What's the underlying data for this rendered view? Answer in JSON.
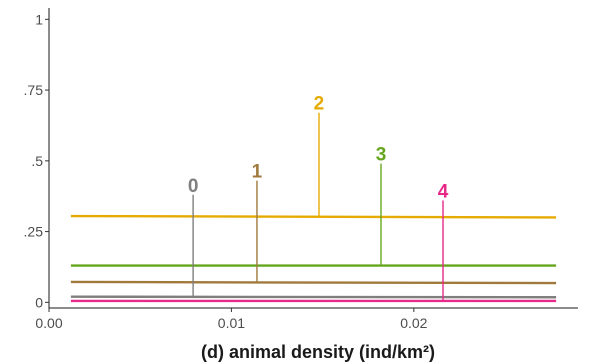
{
  "chart_data": {
    "type": "line",
    "title": "",
    "xlabel": "(d)  animal density (ind/km²)",
    "ylabel": "",
    "xlim": [
      0.0,
      0.029
    ],
    "ylim": [
      -0.02,
      1.04
    ],
    "x_ticks": [
      {
        "value": 0.0,
        "label": "0.00"
      },
      {
        "value": 0.01,
        "label": "0.01"
      },
      {
        "value": 0.02,
        "label": "0.02"
      }
    ],
    "y_ticks": [
      {
        "value": 0,
        "label": "0"
      },
      {
        "value": 0.25,
        "label": ".25"
      },
      {
        "value": 0.5,
        "label": ".5"
      },
      {
        "value": 0.75,
        "label": ".75"
      },
      {
        "value": 1,
        "label": "1"
      }
    ],
    "grid": false,
    "series": [
      {
        "name": "0",
        "color": "#7f7f7f",
        "x": [
          0.0012,
          0.0278
        ],
        "y": [
          0.02,
          0.018
        ],
        "marker_x": 0.0079,
        "marker_top": 0.38
      },
      {
        "name": "1",
        "color": "#a07a3c",
        "x": [
          0.0012,
          0.0278
        ],
        "y": [
          0.072,
          0.068
        ],
        "marker_x": 0.0114,
        "marker_top": 0.43
      },
      {
        "name": "2",
        "color": "#e6ab02",
        "x": [
          0.0012,
          0.0278
        ],
        "y": [
          0.305,
          0.3
        ],
        "marker_x": 0.0148,
        "marker_top": 0.67
      },
      {
        "name": "3",
        "color": "#66a61e",
        "x": [
          0.0012,
          0.0278
        ],
        "y": [
          0.13,
          0.13
        ],
        "marker_x": 0.0182,
        "marker_top": 0.49
      },
      {
        "name": "4",
        "color": "#e7298a",
        "x": [
          0.0012,
          0.0278
        ],
        "y": [
          0.005,
          0.005
        ],
        "marker_x": 0.0216,
        "marker_top": 0.36
      }
    ]
  }
}
